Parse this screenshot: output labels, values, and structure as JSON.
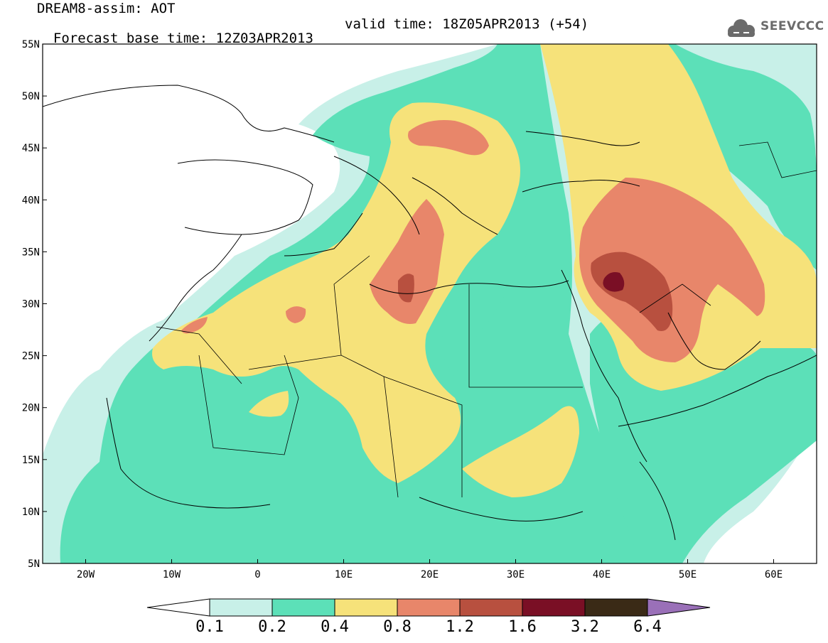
{
  "header": {
    "line1": "DREAM8-assim: AOT",
    "line2": "Forecast base time: 12Z03APR2013",
    "valid_time": "valid time: 18Z05APR2013 (+54)"
  },
  "logo": {
    "text": "SEEVCCC",
    "icon": "cloud-icon"
  },
  "map": {
    "lat_ticks": [
      "55N",
      "50N",
      "45N",
      "40N",
      "35N",
      "30N",
      "25N",
      "20N",
      "15N",
      "10N",
      "5N"
    ],
    "lon_ticks": [
      "20W",
      "10W",
      "0",
      "10E",
      "20E",
      "30E",
      "40E",
      "50E",
      "60E"
    ],
    "lat_range": [
      5,
      55
    ],
    "lon_range": [
      -25,
      65
    ]
  },
  "colorbar": {
    "labels": [
      "0.1",
      "0.2",
      "0.4",
      "0.8",
      "1.2",
      "1.6",
      "3.2",
      "6.4"
    ],
    "colors": [
      "#ffffff",
      "#c8f0e8",
      "#5ce0b8",
      "#f6e27a",
      "#e8866a",
      "#b8503f",
      "#7a0f25",
      "#3a2a16",
      "#9a70b8"
    ]
  },
  "colors": {
    "level1": "#c8f0e8",
    "level2": "#5ce0b8",
    "level3": "#f6e27a",
    "level4": "#e8866a",
    "level5": "#b8503f",
    "level6": "#7a0f25"
  }
}
